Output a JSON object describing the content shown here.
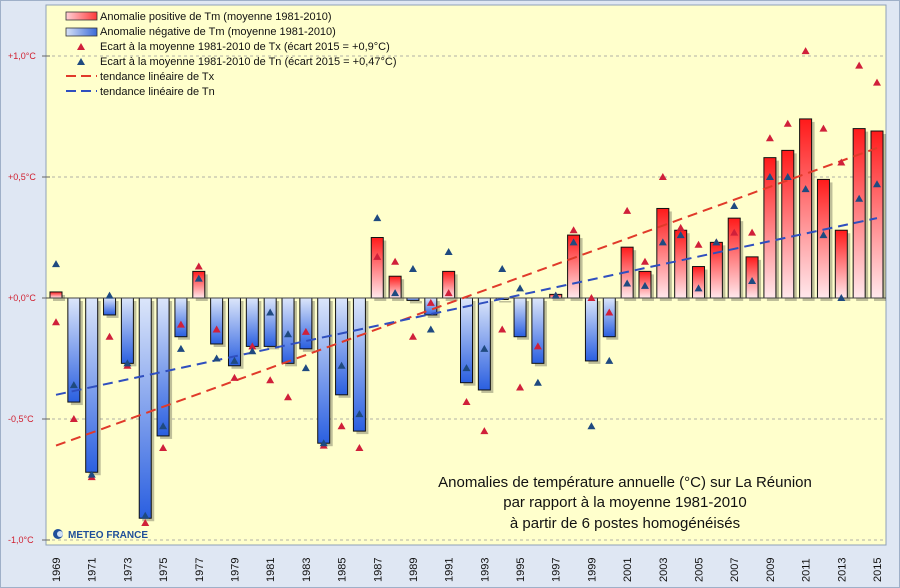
{
  "chart_data": {
    "type": "bar",
    "title_lines": [
      "Anomalies de température annuelle (°C) sur La Réunion",
      "par rapport à la moyenne 1981-2010",
      "à partir de 6 postes homogénéisés"
    ],
    "xlabel": "",
    "ylabel": "",
    "ylim": [
      -1.0,
      1.0
    ],
    "yticks": [
      1.0,
      0.5,
      0.0,
      -0.5,
      -1.0
    ],
    "ytick_labels": [
      "+1,0°C",
      "+0,5°C",
      "+0,0°C",
      "-0,5°C",
      "-1,0°C"
    ],
    "grid": "horizontal dashed",
    "legend_position": "top-left",
    "years": [
      1969,
      1970,
      1971,
      1972,
      1973,
      1974,
      1975,
      1976,
      1977,
      1978,
      1979,
      1980,
      1981,
      1982,
      1983,
      1984,
      1985,
      1986,
      1987,
      1988,
      1989,
      1990,
      1991,
      1992,
      1993,
      1994,
      1995,
      1996,
      1997,
      1998,
      1999,
      2000,
      2001,
      2002,
      2003,
      2004,
      2005,
      2006,
      2007,
      2008,
      2009,
      2010,
      2011,
      2012,
      2013,
      2014,
      2015
    ],
    "xtick_labels": [
      "1969",
      "1971",
      "1973",
      "1975",
      "1977",
      "1979",
      "1981",
      "1983",
      "1985",
      "1987",
      "1989",
      "1991",
      "1993",
      "1995",
      "1997",
      "1999",
      "2001",
      "2003",
      "2005",
      "2007",
      "2009",
      "2011",
      "2013",
      "2015"
    ],
    "series": [
      {
        "name": "Anomalie de Tm (moyenne 1981-2010)",
        "kind": "bar",
        "values": [
          0.025,
          -0.43,
          -0.72,
          -0.07,
          -0.27,
          -0.91,
          -0.57,
          -0.16,
          0.11,
          -0.19,
          -0.28,
          -0.2,
          -0.2,
          -0.27,
          -0.21,
          -0.6,
          -0.4,
          -0.55,
          0.25,
          0.09,
          -0.01,
          -0.07,
          0.11,
          -0.35,
          -0.38,
          -0.005,
          -0.16,
          -0.27,
          0.015,
          0.26,
          -0.26,
          -0.16,
          0.21,
          0.11,
          0.37,
          0.28,
          0.13,
          0.23,
          0.33,
          0.17,
          0.58,
          0.61,
          0.74,
          0.49,
          0.28,
          0.7,
          0.69
        ]
      },
      {
        "name": "Ecart à la moyenne 1981-2010 de Tx (écart 2015 = +0,9°C)",
        "kind": "triangle",
        "values": [
          -0.1,
          -0.5,
          -0.74,
          -0.16,
          -0.28,
          -0.93,
          -0.62,
          -0.11,
          0.13,
          -0.13,
          -0.33,
          -0.2,
          -0.34,
          -0.41,
          -0.14,
          -0.61,
          -0.53,
          -0.62,
          0.17,
          0.15,
          -0.16,
          -0.02,
          0.02,
          -0.43,
          -0.55,
          -0.13,
          -0.37,
          -0.2,
          0.01,
          0.28,
          0.0,
          -0.06,
          0.36,
          0.15,
          0.5,
          0.29,
          0.22,
          0.23,
          0.27,
          0.27,
          0.66,
          0.72,
          1.02,
          0.7,
          0.56,
          0.96,
          0.89
        ]
      },
      {
        "name": "Ecart à la moyenne 1981-2010 de Tn (écart 2015 = +0,47°C)",
        "kind": "triangle",
        "values": [
          0.14,
          -0.36,
          -0.73,
          0.01,
          -0.27,
          -0.9,
          -0.53,
          -0.21,
          0.08,
          -0.25,
          -0.26,
          -0.22,
          -0.06,
          -0.15,
          -0.29,
          -0.6,
          -0.28,
          -0.48,
          0.33,
          0.02,
          0.12,
          -0.13,
          0.19,
          -0.29,
          -0.21,
          0.12,
          0.04,
          -0.35,
          0.01,
          0.23,
          -0.53,
          -0.26,
          0.06,
          0.05,
          0.23,
          0.26,
          0.04,
          0.23,
          0.38,
          0.07,
          0.5,
          0.5,
          0.45,
          0.26,
          0.0,
          0.41,
          0.47
        ]
      },
      {
        "name": "tendance linéaire de Tx",
        "kind": "trend",
        "start": [
          1969,
          -0.61
        ],
        "end": [
          2015,
          0.62
        ]
      },
      {
        "name": "tendance linéaire de Tn",
        "kind": "trend",
        "start": [
          1969,
          -0.4
        ],
        "end": [
          2015,
          0.33
        ]
      }
    ],
    "legend": [
      "Anomalie positive de Tm (moyenne 1981-2010)",
      "Anomalie négative de Tm (moyenne 1981-2010)",
      "Ecart à la moyenne 1981-2010 de Tx (écart 2015 = +0,9°C)",
      "Ecart à la moyenne 1981-2010 de Tn (écart 2015 = +0,47°C)",
      "tendance linéaire de Tx",
      "tendance linéaire de Tn"
    ],
    "colors": {
      "positive": "#ff2020",
      "negative": "#2a5fe0",
      "tx": "#d0203a",
      "tn": "#1f4a80",
      "trend_tx": "#e03a2a",
      "trend_tn": "#2f4fbf",
      "plot_bg": "#ffffcc"
    }
  },
  "logo": "METEO FRANCE"
}
